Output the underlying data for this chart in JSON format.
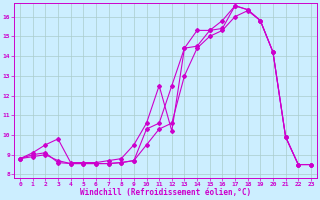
{
  "xlabel": "Windchill (Refroidissement éolien,°C)",
  "bg_color": "#cceeff",
  "line_color": "#cc00cc",
  "grid_color": "#aacccc",
  "xlim": [
    -0.5,
    23.5
  ],
  "ylim": [
    7.8,
    16.7
  ],
  "xticks": [
    0,
    1,
    2,
    3,
    4,
    5,
    6,
    7,
    8,
    9,
    10,
    11,
    12,
    13,
    14,
    15,
    16,
    17,
    18,
    19,
    20,
    21,
    22,
    23
  ],
  "yticks": [
    8,
    9,
    10,
    11,
    12,
    13,
    14,
    15,
    16
  ],
  "line1_x": [
    0,
    1,
    2,
    3,
    4,
    5,
    6,
    7,
    8,
    9,
    10,
    11,
    12,
    13,
    14,
    15,
    16,
    17,
    18,
    19,
    20,
    21,
    22,
    23
  ],
  "line1_y": [
    8.8,
    9.1,
    9.5,
    9.8,
    8.6,
    8.6,
    8.6,
    8.7,
    8.8,
    9.5,
    10.6,
    12.5,
    10.2,
    14.4,
    14.5,
    15.3,
    15.4,
    16.55,
    16.35,
    15.8,
    14.2,
    9.9,
    8.5,
    8.5
  ],
  "line2_x": [
    0,
    1,
    2,
    3,
    4,
    5,
    6,
    7,
    8,
    9,
    10,
    11,
    12,
    13,
    14,
    15,
    16,
    17,
    18,
    19,
    20,
    21,
    22,
    23
  ],
  "line2_y": [
    8.8,
    9.0,
    9.1,
    8.6,
    8.55,
    8.55,
    8.55,
    8.55,
    8.6,
    8.7,
    10.3,
    10.6,
    12.5,
    14.4,
    15.3,
    15.3,
    15.8,
    16.55,
    16.35,
    15.8,
    14.2,
    9.9,
    8.5,
    8.5
  ],
  "line3_x": [
    0,
    1,
    2,
    3,
    4,
    5,
    6,
    7,
    8,
    9,
    10,
    11,
    12,
    13,
    14,
    15,
    16,
    17,
    18,
    19,
    20,
    21,
    22,
    23
  ],
  "line3_y": [
    8.8,
    8.9,
    9.0,
    8.7,
    8.55,
    8.55,
    8.55,
    8.55,
    8.6,
    8.7,
    9.5,
    10.3,
    10.6,
    13.0,
    14.4,
    15.0,
    15.3,
    16.0,
    16.3,
    15.8,
    14.2,
    9.9,
    8.5,
    8.5
  ]
}
